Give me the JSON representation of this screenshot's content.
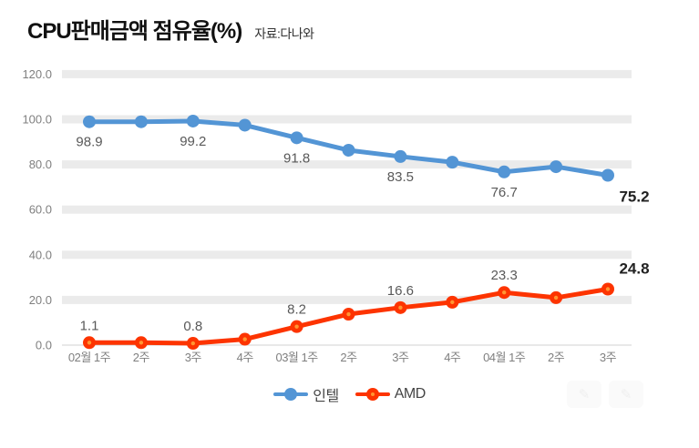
{
  "header": {
    "title": "CPU판매금액 점유율(%)",
    "source": "자료:다나와"
  },
  "legend": {
    "items": [
      {
        "label": "인텔",
        "color": "#5395d5"
      },
      {
        "label": "AMD",
        "color": "#fd3400",
        "center_dot": "#ff9633"
      }
    ]
  },
  "watermark": {
    "icon1": "✎",
    "icon2": "✎"
  },
  "colors": {
    "grid_band": "#ebebeb",
    "zero_line": "#d0d0d0",
    "tick_label": "#7f7f7f",
    "data_label": "#595959",
    "data_label_emph": "#222222",
    "intel": "#5395d5",
    "amd": "#fd3400",
    "amd_marker_center": "#ff9633"
  },
  "chart_data": {
    "type": "line",
    "title": "CPU판매금액 점유율(%)",
    "subtitle": "자료:다나와",
    "categories": [
      "02월 1주",
      "2주",
      "3주",
      "4주",
      "03월 1주",
      "2주",
      "3주",
      "4주",
      "04월 1주",
      "2주",
      "3주"
    ],
    "series": [
      {
        "name": "인텔",
        "color": "#5395d5",
        "values": [
          98.9,
          98.9,
          99.2,
          97.4,
          91.8,
          86.3,
          83.5,
          81.0,
          76.7,
          79.0,
          75.2
        ],
        "labels": [
          "98.9",
          null,
          "99.2",
          null,
          "91.8",
          null,
          "83.5",
          null,
          "76.7",
          null,
          "75.2"
        ],
        "label_side": "below",
        "bold_last_label": true
      },
      {
        "name": "AMD",
        "color": "#fd3400",
        "marker_center": "#ff9633",
        "values": [
          1.1,
          1.1,
          0.8,
          2.6,
          8.2,
          13.7,
          16.6,
          19.0,
          23.3,
          21.0,
          24.8
        ],
        "labels": [
          "1.1",
          null,
          "0.8",
          null,
          "8.2",
          null,
          "16.6",
          null,
          "23.3",
          null,
          "24.8"
        ],
        "label_side": "above",
        "bold_last_label": true
      }
    ],
    "ylim": [
      0,
      120
    ],
    "yticks": [
      0,
      20,
      40,
      60,
      80,
      100,
      120
    ],
    "ytick_format": "one_decimal",
    "grid": "horizontal_bands",
    "legend_position": "bottom_center"
  }
}
